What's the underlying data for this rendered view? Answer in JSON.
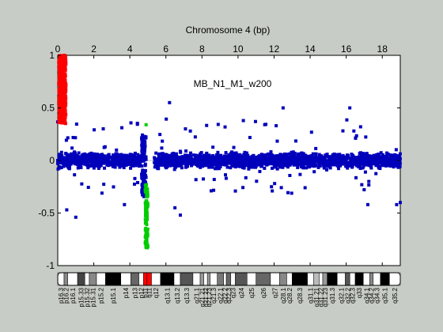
{
  "chart_data": {
    "type": "scatter",
    "title": "Chromosome 4 (bp)",
    "annotation": "MB_N1_M1_w200",
    "xlim": [
      0,
      19
    ],
    "ylim": [
      -1,
      1
    ],
    "x_ticks": [
      0,
      2,
      4,
      6,
      8,
      10,
      12,
      14,
      16,
      18
    ],
    "y_ticks": [
      -1,
      -0.5,
      0,
      0.5,
      1
    ],
    "y_tick_labels": [
      "-1",
      "-0.5",
      "0",
      "0.5",
      "1"
    ],
    "grid": false,
    "baseline": 0,
    "series": [
      {
        "color": "#ff0000",
        "x_range": [
          0.05,
          0.45
        ],
        "y_range": [
          0.35,
          1.0
        ],
        "description_points": [
          [
            0.1,
            0.98
          ],
          [
            0.2,
            0.9
          ],
          [
            0.25,
            0.75
          ],
          [
            0.3,
            0.6
          ],
          [
            0.35,
            0.45
          ],
          [
            0.4,
            0.38
          ]
        ]
      },
      {
        "color": "#00cc00",
        "x_range": [
          4.85,
          5.0
        ],
        "y_range": [
          -0.83,
          0.35
        ],
        "description_points": [
          [
            4.9,
            0.34
          ],
          [
            4.92,
            -0.3
          ],
          [
            4.93,
            -0.5
          ],
          [
            4.95,
            -0.7
          ],
          [
            4.97,
            -0.83
          ]
        ]
      },
      {
        "color": "#0000bb",
        "x_range": [
          0.0,
          19.0
        ],
        "y_range": [
          -0.55,
          0.55
        ],
        "outliers": [
          [
            0.5,
            -0.47
          ],
          [
            1.0,
            -0.54
          ],
          [
            6.5,
            -0.45
          ],
          [
            12.5,
            0.5
          ],
          [
            16.2,
            0.5
          ],
          [
            17.2,
            -0.42
          ],
          [
            6.8,
            -0.52
          ],
          [
            3.7,
            -0.42
          ],
          [
            18.8,
            -0.42
          ],
          [
            6.2,
            0.55
          ],
          [
            19.0,
            -0.4
          ]
        ]
      }
    ]
  },
  "ideogram": {
    "bands": [
      {
        "label": "p16.3",
        "x0": 0.0,
        "x1": 0.35,
        "color": "#ffffff"
      },
      {
        "label": "p16.2",
        "x0": 0.35,
        "x1": 0.55,
        "color": "#888888"
      },
      {
        "label": "p16.1",
        "x0": 0.55,
        "x1": 1.1,
        "color": "#ffffff"
      },
      {
        "label": "p15.33",
        "x0": 1.1,
        "x1": 1.5,
        "color": "#444444"
      },
      {
        "label": "p15.32",
        "x0": 1.5,
        "x1": 1.75,
        "color": "#ffffff"
      },
      {
        "label": "p15.31",
        "x0": 1.75,
        "x1": 2.15,
        "color": "#888888"
      },
      {
        "label": "p15.2",
        "x0": 2.15,
        "x1": 2.65,
        "color": "#ffffff"
      },
      {
        "label": "p15.1",
        "x0": 2.65,
        "x1": 3.5,
        "color": "#000000"
      },
      {
        "label": "p14",
        "x0": 3.5,
        "x1": 4.05,
        "color": "#ffffff"
      },
      {
        "label": "p13",
        "x0": 4.05,
        "x1": 4.5,
        "color": "#666666"
      },
      {
        "label": "p12",
        "x0": 4.5,
        "x1": 4.75,
        "color": "#ffffff"
      },
      {
        "label": "p11",
        "x0": 4.75,
        "x1": 4.95,
        "color": "#ff0000"
      },
      {
        "label": "q11",
        "x0": 4.95,
        "x1": 5.2,
        "color": "#ff0000"
      },
      {
        "label": "q12",
        "x0": 5.2,
        "x1": 5.7,
        "color": "#ffffff"
      },
      {
        "label": "q13.1",
        "x0": 5.7,
        "x1": 6.45,
        "color": "#000000"
      },
      {
        "label": "q13.2",
        "x0": 6.45,
        "x1": 6.8,
        "color": "#ffffff"
      },
      {
        "label": "q13.3",
        "x0": 6.8,
        "x1": 7.5,
        "color": "#555555"
      },
      {
        "label": "q21.1",
        "x0": 7.5,
        "x1": 7.9,
        "color": "#ffffff"
      },
      {
        "label": "q21.21",
        "x0": 7.9,
        "x1": 8.1,
        "color": "#999999"
      },
      {
        "label": "q21.22",
        "x0": 8.1,
        "x1": 8.3,
        "color": "#ffffff"
      },
      {
        "label": "q21.23",
        "x0": 8.3,
        "x1": 8.45,
        "color": "#999999"
      },
      {
        "label": "q21.3",
        "x0": 8.45,
        "x1": 8.85,
        "color": "#ffffff"
      },
      {
        "label": "q22.1",
        "x0": 8.85,
        "x1": 9.2,
        "color": "#777777"
      },
      {
        "label": "q22.2",
        "x0": 9.2,
        "x1": 9.35,
        "color": "#ffffff"
      },
      {
        "label": "q22.3",
        "x0": 9.35,
        "x1": 9.6,
        "color": "#666666"
      },
      {
        "label": "q23",
        "x0": 9.6,
        "x1": 9.85,
        "color": "#ffffff"
      },
      {
        "label": "q24",
        "x0": 9.85,
        "x1": 10.5,
        "color": "#555555"
      },
      {
        "label": "q25",
        "x0": 10.5,
        "x1": 11.0,
        "color": "#ffffff"
      },
      {
        "label": "q26",
        "x0": 11.0,
        "x1": 11.8,
        "color": "#666666"
      },
      {
        "label": "q27",
        "x0": 11.8,
        "x1": 12.3,
        "color": "#ffffff"
      },
      {
        "label": "q28.1",
        "x0": 12.3,
        "x1": 12.7,
        "color": "#888888"
      },
      {
        "label": "q28.2",
        "x0": 12.7,
        "x1": 13.0,
        "color": "#ffffff"
      },
      {
        "label": "q28.3",
        "x0": 13.0,
        "x1": 13.85,
        "color": "#000000"
      },
      {
        "label": "q31.1",
        "x0": 13.85,
        "x1": 14.2,
        "color": "#ffffff"
      },
      {
        "label": "q31.21",
        "x0": 14.2,
        "x1": 14.5,
        "color": "#bbbbbb"
      },
      {
        "label": "q31.22",
        "x0": 14.5,
        "x1": 14.7,
        "color": "#ffffff"
      },
      {
        "label": "q31.23",
        "x0": 14.7,
        "x1": 14.95,
        "color": "#999999"
      },
      {
        "label": "q31.3",
        "x0": 14.95,
        "x1": 15.5,
        "color": "#000000"
      },
      {
        "label": "q32.1",
        "x0": 15.5,
        "x1": 15.95,
        "color": "#ffffff"
      },
      {
        "label": "q32.2",
        "x0": 15.95,
        "x1": 16.2,
        "color": "#555555"
      },
      {
        "label": "q32.3",
        "x0": 16.2,
        "x1": 16.5,
        "color": "#ffffff"
      },
      {
        "label": "q33",
        "x0": 16.5,
        "x1": 16.95,
        "color": "#000000"
      },
      {
        "label": "q34.1",
        "x0": 16.95,
        "x1": 17.3,
        "color": "#ffffff"
      },
      {
        "label": "q34.2",
        "x0": 17.3,
        "x1": 17.5,
        "color": "#888888"
      },
      {
        "label": "q34.3",
        "x0": 17.5,
        "x1": 17.9,
        "color": "#ffffff"
      },
      {
        "label": "q35.1",
        "x0": 17.9,
        "x1": 18.4,
        "color": "#000000"
      },
      {
        "label": "q35.2",
        "x0": 18.4,
        "x1": 19.0,
        "color": "#ffffff"
      }
    ]
  }
}
